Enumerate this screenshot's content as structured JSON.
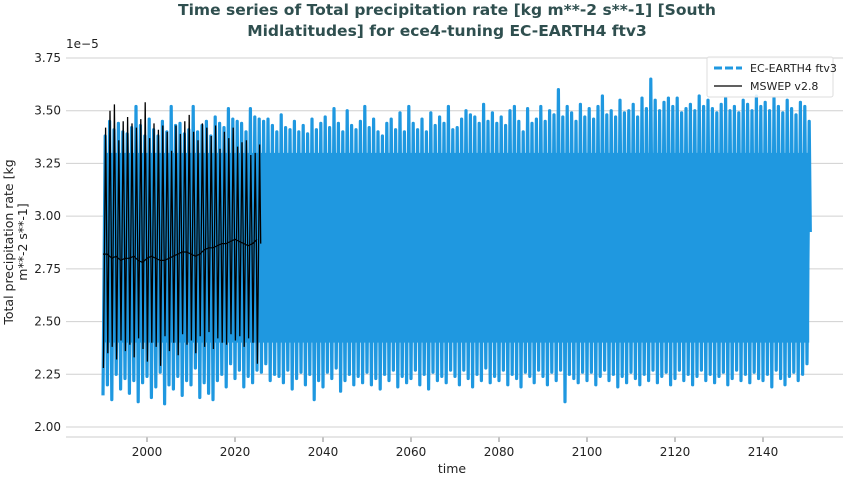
{
  "chart_data": {
    "type": "line",
    "title": "Time series of Total precipitation rate [kg m**-2 s**-1] [South Midlatitudes] for ece4-tuning EC-EARTH4 ftv3",
    "title_lines": [
      "Time series of Total precipitation rate [kg m**-2 s**-1] [South",
      "Midlatitudes] for ece4-tuning EC-EARTH4 ftv3"
    ],
    "xlabel": "time",
    "ylabel_lines": [
      "Total precipitation rate [kg",
      "m**-2 s**-1]"
    ],
    "y_offset_label": "1e−5",
    "ylim": [
      2.0,
      3.75
    ],
    "xlim": [
      1985,
      2155
    ],
    "y_ticks": [
      "2.00",
      "2.25",
      "2.50",
      "2.75",
      "3.00",
      "3.25",
      "3.50",
      "3.75"
    ],
    "x_ticks": [
      "2000",
      "2020",
      "2040",
      "2060",
      "2080",
      "2100",
      "2120",
      "2140"
    ],
    "grid": "horizontal",
    "legend_position": "top-right",
    "note": "",
    "series": [
      {
        "name": "EC-EARTH4 ftv3",
        "color": "#1f98e0",
        "style": "dashed-thick",
        "start_year": 1990,
        "annual_max": [
          3.38,
          3.45,
          3.41,
          3.44,
          3.4,
          3.39,
          3.42,
          3.52,
          3.43,
          3.38,
          3.46,
          3.41,
          3.38,
          3.45,
          3.4,
          3.52,
          3.43,
          3.44,
          3.39,
          3.41,
          3.52,
          3.4,
          3.43,
          3.45,
          3.38,
          3.47,
          3.44,
          3.42,
          3.51,
          3.46,
          3.45,
          3.44,
          3.4,
          3.51,
          3.47,
          3.46,
          3.45,
          3.46,
          3.43,
          3.4,
          3.48,
          3.42,
          3.41,
          3.45,
          3.4,
          3.43,
          3.39,
          3.46,
          3.41,
          3.44,
          3.47,
          3.42,
          3.51,
          3.44,
          3.4,
          3.5,
          3.43,
          3.41,
          3.45,
          3.52,
          3.42,
          3.46,
          3.4,
          3.38,
          3.44,
          3.46,
          3.41,
          3.49,
          3.4,
          3.52,
          3.44,
          3.41,
          3.46,
          3.4,
          3.49,
          3.43,
          3.47,
          3.44,
          3.52,
          3.41,
          3.42,
          3.46,
          3.5,
          3.48,
          3.47,
          3.44,
          3.53,
          3.45,
          3.49,
          3.44,
          3.47,
          3.43,
          3.5,
          3.52,
          3.45,
          3.4,
          3.51,
          3.44,
          3.46,
          3.52,
          3.45,
          3.5,
          3.48,
          3.6,
          3.47,
          3.52,
          3.49,
          3.45,
          3.53,
          3.47,
          3.51,
          3.46,
          3.52,
          3.57,
          3.48,
          3.5,
          3.47,
          3.55,
          3.49,
          3.5,
          3.53,
          3.47,
          3.56,
          3.51,
          3.65,
          3.55,
          3.5,
          3.54,
          3.56,
          3.52,
          3.56,
          3.49,
          3.51,
          3.53,
          3.5,
          3.57,
          3.52,
          3.55,
          3.51,
          3.49,
          3.53,
          3.56,
          3.5,
          3.52,
          3.49,
          3.55,
          3.53,
          3.5,
          3.57,
          3.52,
          3.54,
          3.5,
          3.56,
          3.52,
          3.49,
          3.55,
          3.51,
          3.48,
          3.54,
          3.52,
          3.45
        ],
        "annual_min": [
          2.15,
          2.2,
          2.13,
          2.25,
          2.18,
          2.23,
          2.16,
          2.22,
          2.12,
          2.21,
          2.24,
          2.14,
          2.19,
          2.26,
          2.11,
          2.2,
          2.18,
          2.24,
          2.15,
          2.22,
          2.2,
          2.28,
          2.14,
          2.21,
          2.16,
          2.13,
          2.22,
          2.25,
          2.19,
          2.3,
          2.23,
          2.27,
          2.19,
          2.24,
          2.21,
          2.27,
          2.26,
          2.3,
          2.22,
          2.25,
          2.24,
          2.21,
          2.27,
          2.18,
          2.23,
          2.26,
          2.2,
          2.25,
          2.13,
          2.22,
          2.19,
          2.26,
          2.23,
          2.28,
          2.17,
          2.22,
          2.25,
          2.2,
          2.24,
          2.21,
          2.26,
          2.2,
          2.23,
          2.18,
          2.25,
          2.22,
          2.27,
          2.19,
          2.24,
          2.21,
          2.23,
          2.27,
          2.2,
          2.25,
          2.18,
          2.26,
          2.22,
          2.24,
          2.21,
          2.27,
          2.24,
          2.2,
          2.27,
          2.23,
          2.19,
          2.25,
          2.22,
          2.28,
          2.21,
          2.24,
          2.22,
          2.27,
          2.2,
          2.25,
          2.23,
          2.19,
          2.26,
          2.24,
          2.21,
          2.27,
          2.24,
          2.2,
          2.26,
          2.22,
          2.27,
          2.12,
          2.25,
          2.23,
          2.21,
          2.26,
          2.22,
          2.26,
          2.2,
          2.24,
          2.27,
          2.22,
          2.25,
          2.19,
          2.24,
          2.21,
          2.26,
          2.23,
          2.2,
          2.25,
          2.22,
          2.27,
          2.21,
          2.24,
          2.26,
          2.2,
          2.23,
          2.27,
          2.22,
          2.25,
          2.2,
          2.24,
          2.27,
          2.22,
          2.25,
          2.21,
          2.24,
          2.26,
          2.2,
          2.23,
          2.27,
          2.22,
          2.25,
          2.21,
          2.26,
          2.23,
          2.22,
          2.25,
          2.19,
          2.27,
          2.23,
          2.2,
          2.24,
          2.26,
          2.22,
          2.25,
          2.3
        ]
      },
      {
        "name": "MSWEP v2.8",
        "color": "#000000",
        "style": "solid-thin",
        "start_year": 1990,
        "annual_max": [
          3.42,
          3.5,
          3.53,
          3.36,
          3.45,
          3.47,
          3.44,
          3.42,
          3.46,
          3.54,
          3.37,
          3.44,
          3.41,
          3.43,
          3.4,
          3.31,
          3.43,
          3.39,
          3.45,
          3.48,
          3.4,
          3.36,
          3.44,
          3.42,
          3.38,
          3.43,
          3.32,
          3.4,
          3.37,
          3.42,
          3.33,
          3.35,
          3.36,
          3.29,
          3.3,
          3.34
        ],
        "annual_min": [
          2.28,
          2.35,
          2.38,
          2.32,
          2.41,
          2.36,
          2.39,
          2.33,
          2.42,
          2.37,
          2.31,
          2.4,
          2.38,
          2.29,
          2.43,
          2.36,
          2.4,
          2.34,
          2.44,
          2.39,
          2.41,
          2.35,
          2.43,
          2.38,
          2.45,
          2.37,
          2.42,
          2.4,
          2.39,
          2.44,
          2.41,
          2.43,
          2.38,
          2.42,
          2.4,
          2.3
        ],
        "running_mean": [
          2.82,
          2.82,
          2.8,
          2.81,
          2.79,
          2.8,
          2.8,
          2.81,
          2.79,
          2.78,
          2.8,
          2.81,
          2.8,
          2.79,
          2.79,
          2.8,
          2.81,
          2.82,
          2.83,
          2.83,
          2.82,
          2.81,
          2.82,
          2.84,
          2.85,
          2.85,
          2.86,
          2.87,
          2.87,
          2.88,
          2.89,
          2.88,
          2.87,
          2.86,
          2.87,
          2.89
        ]
      }
    ]
  }
}
